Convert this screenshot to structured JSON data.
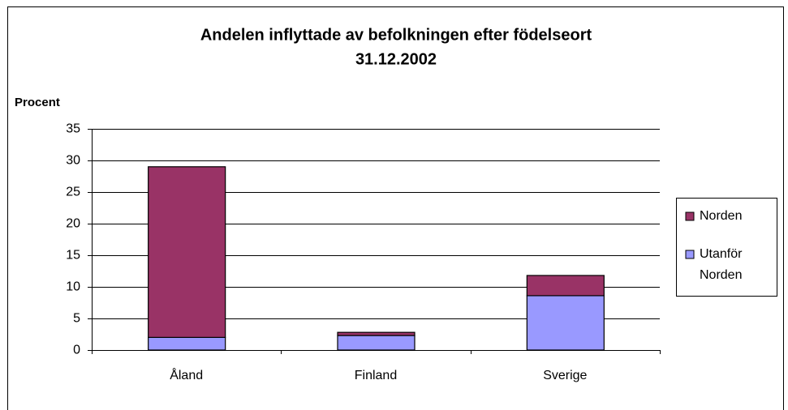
{
  "chart_data": {
    "type": "stacked_bar",
    "title": "Andelen inflyttade av befolkningen efter födelseort",
    "subtitle": "31.12.2002",
    "y_label": "Procent",
    "categories": [
      "Åland",
      "Finland",
      "Sverige"
    ],
    "series": [
      {
        "name": "Utanför Norden",
        "color": "#9999ff",
        "values": [
          2.0,
          2.3,
          8.6
        ]
      },
      {
        "name": "Norden",
        "color": "#993366",
        "values": [
          27.0,
          0.5,
          3.2
        ]
      }
    ],
    "ylim": [
      0,
      35
    ],
    "yticks": [
      0,
      5,
      10,
      15,
      20,
      25,
      30,
      35
    ],
    "grid": true,
    "legend": "right"
  }
}
